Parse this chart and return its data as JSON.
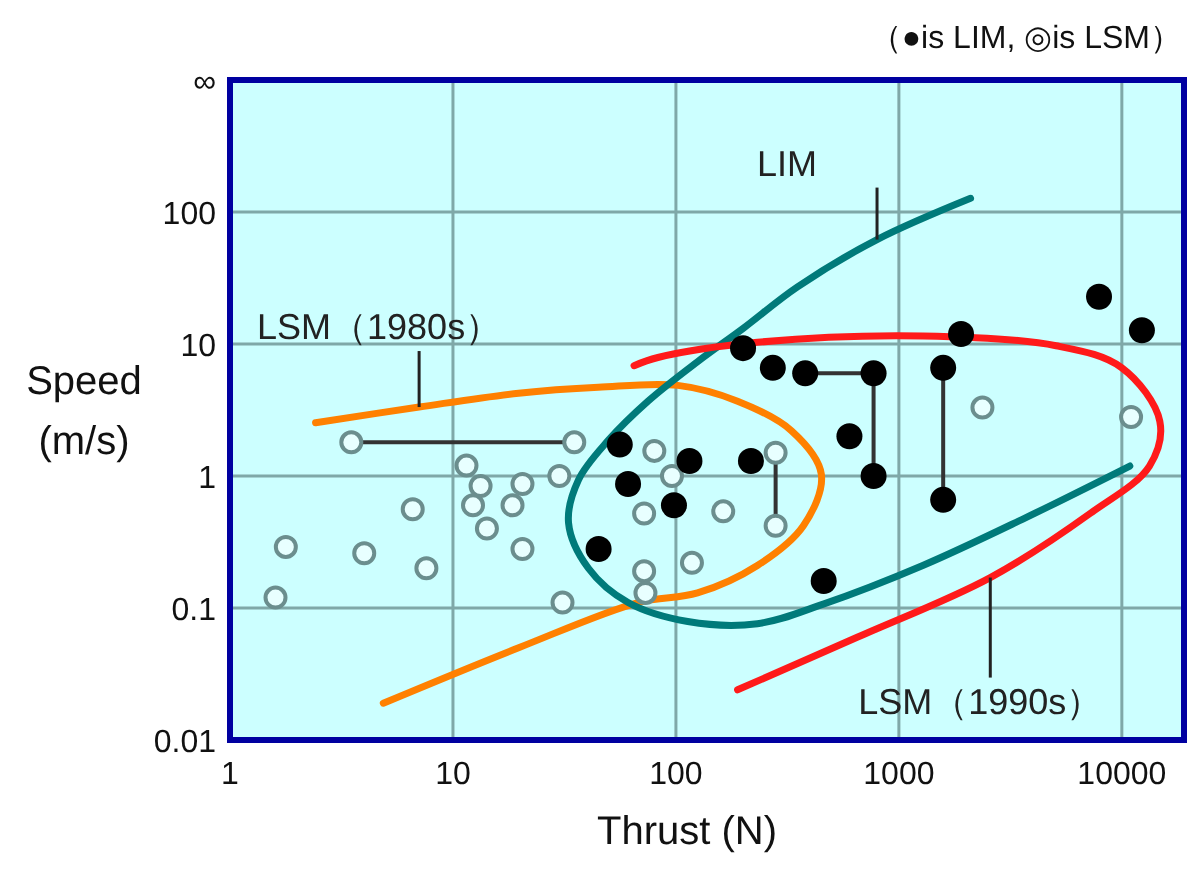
{
  "chart_data": {
    "type": "scatter",
    "xlabel": "Thrust (N)",
    "ylabel": "Speed (m/s)",
    "log": "xy",
    "grid": true,
    "xlim": [
      1,
      19000
    ],
    "ylim": [
      0.01,
      1000
    ],
    "xticks": [
      1,
      10,
      100,
      1000,
      10000
    ],
    "yticks": [
      0.01,
      0.1,
      1,
      10,
      100,
      {
        "value": 1000,
        "label": "∞"
      }
    ],
    "annotations": [
      "（●is LIM, ◎is LSM）"
    ],
    "series": [
      {
        "type": "line",
        "name": "LSM（1980s）",
        "color": "#ff8000",
        "marker": "none",
        "x": [
          2.42,
          7.05,
          19.7,
          44.9,
          102,
          189,
          330,
          449,
          373,
          232,
          125,
          67.6,
          19.7,
          4.87
        ],
        "values": [
          2.53,
          3.33,
          4.24,
          4.7,
          4.86,
          3.69,
          2.2,
          1.03,
          0.42,
          0.21,
          0.13,
          0.11,
          0.05,
          0.019
        ]
      },
      {
        "type": "line",
        "name": "LIM",
        "color": "#007a7a",
        "marker": "none",
        "x": [
          2096,
          798,
          351,
          201,
          125,
          75,
          49.7,
          36.5,
          33,
          40.5,
          61,
          113,
          232,
          458,
          1280,
          3580,
          10860
        ],
        "values": [
          127,
          61.8,
          27.1,
          13.2,
          7.34,
          3.69,
          1.86,
          0.93,
          0.44,
          0.2,
          0.11,
          0.079,
          0.076,
          0.107,
          0.21,
          0.47,
          1.19
        ]
      },
      {
        "type": "line",
        "name": "LSM（1990s）",
        "color": "#ff1a1a",
        "marker": "none",
        "x": [
          64.9,
          83,
          232,
          1280,
          5070,
          10000,
          14800,
          13300,
          7200,
          2570,
          650,
          189
        ],
        "values": [
          6.85,
          7.9,
          10.3,
          11.5,
          9.7,
          6.6,
          2.6,
          1.19,
          0.52,
          0.17,
          0.06,
          0.024
        ]
      },
      {
        "type": "line",
        "color": "#333333",
        "marker": "none",
        "x": [
          3.5,
          35
        ],
        "values": [
          1.8,
          1.8
        ]
      },
      {
        "type": "line",
        "color": "#333333",
        "marker": "none",
        "x": [
          280,
          280
        ],
        "values": [
          1.5,
          0.42
        ]
      },
      {
        "type": "line",
        "color": "#333333",
        "marker": "none",
        "x": [
          380,
          770
        ],
        "values": [
          6.0,
          6.0
        ]
      },
      {
        "type": "line",
        "color": "#333333",
        "marker": "none",
        "x": [
          770,
          770
        ],
        "values": [
          6.0,
          1.0
        ]
      },
      {
        "type": "line",
        "color": "#333333",
        "marker": "none",
        "x": [
          1580,
          1580
        ],
        "values": [
          6.6,
          0.66
        ]
      },
      {
        "color": "#6b8e8e",
        "marker": "circle-open",
        "x": [
          1.6,
          1.78,
          3.5,
          35,
          4.0,
          6.6,
          7.6,
          11.5,
          13.3,
          12.3,
          14.2,
          18.5,
          20.5,
          20.5,
          30,
          31,
          80,
          96,
          72,
          72,
          73,
          118,
          163,
          280,
          280,
          2370,
          11000
        ],
        "values": [
          0.12,
          0.29,
          1.8,
          1.8,
          0.26,
          0.56,
          0.2,
          1.2,
          0.84,
          0.6,
          0.4,
          0.6,
          0.87,
          0.28,
          1.0,
          0.11,
          1.55,
          1.0,
          0.52,
          0.19,
          0.13,
          0.22,
          0.54,
          1.5,
          0.42,
          3.3,
          2.8
        ]
      },
      {
        "color": "#000000",
        "marker": "circle",
        "x": [
          56,
          61,
          45,
          115,
          98,
          200,
          217,
          272,
          380,
          770,
          770,
          600,
          460,
          1580,
          1580,
          1900,
          7900,
          12300
        ],
        "values": [
          1.73,
          0.87,
          0.28,
          1.3,
          0.6,
          9.3,
          1.3,
          6.6,
          6.0,
          6.0,
          1.0,
          2.0,
          0.16,
          6.6,
          0.66,
          11.9,
          22.8,
          12.7
        ]
      }
    ]
  }
}
